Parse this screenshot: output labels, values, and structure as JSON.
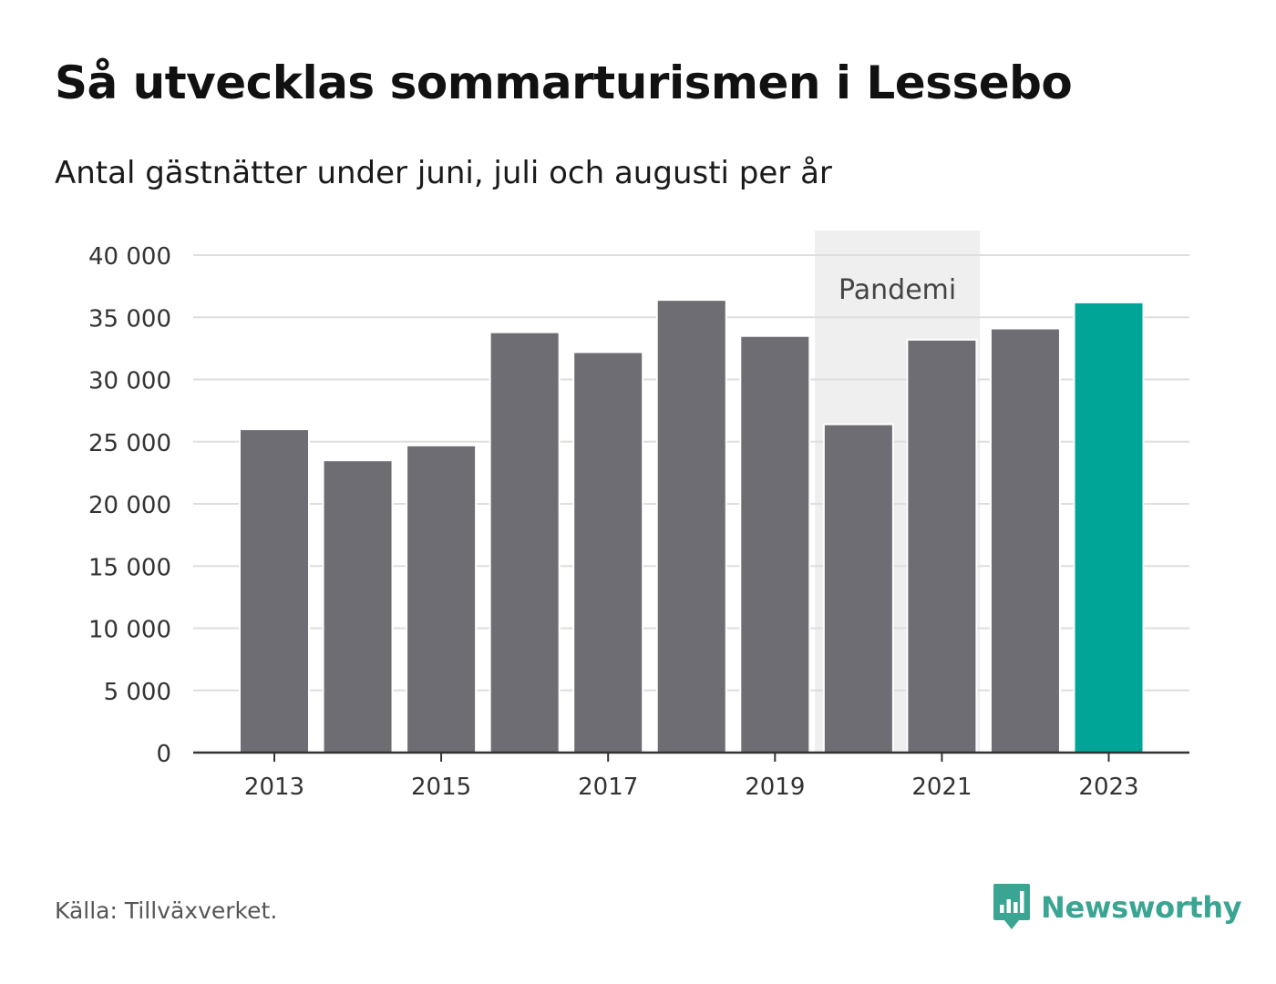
{
  "title": "Så utvecklas sommarturismen i Lessebo",
  "subtitle": "Antal gästnätter under juni, juli och augusti per år",
  "source": "Källa: Tillväxverket.",
  "brand": {
    "name": "Newsworthy",
    "icon": "newsworthy-logo-icon",
    "color": "#3aa593"
  },
  "colors": {
    "bar": "#6e6d73",
    "highlight": "#00a598",
    "pandemic_band": "#efefef",
    "grid": "#dedede",
    "axis": "#333333"
  },
  "chart_data": {
    "type": "bar",
    "title": "Så utvecklas sommarturismen i Lessebo",
    "subtitle": "Antal gästnätter under juni, juli och augusti per år",
    "categories": [
      "2013",
      "2014",
      "2015",
      "2016",
      "2017",
      "2018",
      "2019",
      "2020",
      "2021",
      "2022",
      "2023"
    ],
    "values": [
      26000,
      23500,
      24700,
      33800,
      32200,
      36400,
      33500,
      26400,
      33200,
      34100,
      36200
    ],
    "highlight_category": "2023",
    "xlabel": "",
    "ylabel": "",
    "ylim": [
      0,
      40000
    ],
    "yticks": [
      0,
      5000,
      10000,
      15000,
      20000,
      25000,
      30000,
      35000,
      40000
    ],
    "ytick_labels": [
      "0",
      "5 000",
      "10 000",
      "15 000",
      "20 000",
      "25 000",
      "30 000",
      "35 000",
      "40 000"
    ],
    "xtick_labels": [
      "2013",
      "2015",
      "2017",
      "2019",
      "2021",
      "2023"
    ],
    "grid": true,
    "legend": "none",
    "annotation": {
      "label": "Pandemi",
      "from": "2020",
      "to": "2021"
    }
  }
}
